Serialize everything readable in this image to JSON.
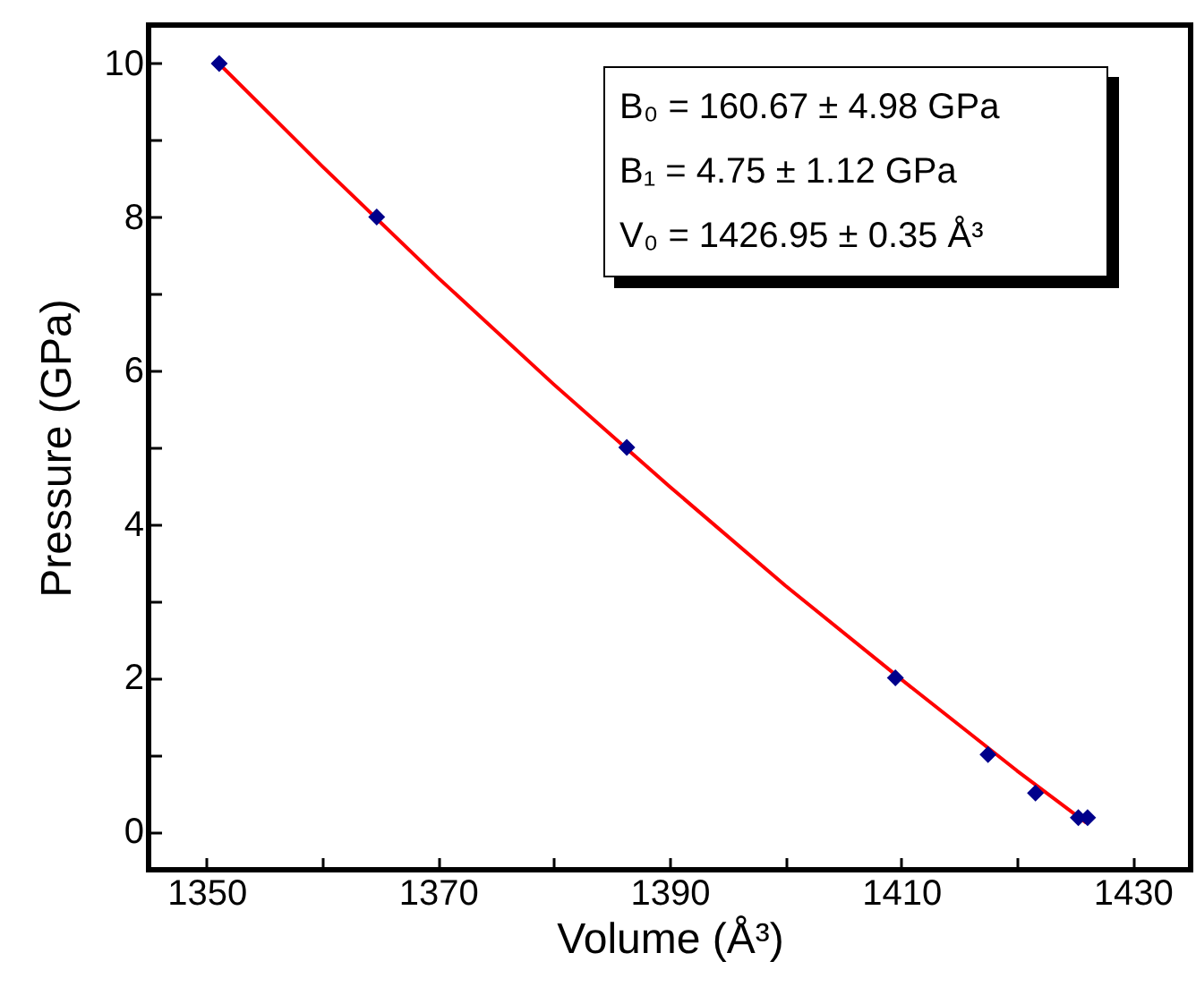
{
  "chart_data": {
    "type": "scatter",
    "xlabel": "Volume (Å³)",
    "ylabel": "Pressure (GPa)",
    "xlim": [
      1345,
      1435
    ],
    "ylim": [
      -0.5,
      10.5
    ],
    "xticks": [
      1350,
      {
        "value": 1360,
        "label": null
      },
      1370,
      {
        "value": 1380,
        "label": null
      },
      1390,
      {
        "value": 1400,
        "label": null
      },
      1410,
      {
        "value": 1420,
        "label": null
      },
      1430
    ],
    "yticks": [
      0,
      {
        "value": 1,
        "label": null
      },
      2,
      {
        "value": 3,
        "label": null
      },
      4,
      {
        "value": 5,
        "label": null
      },
      6,
      {
        "value": 7,
        "label": null
      },
      8,
      {
        "value": 9,
        "label": null
      },
      10
    ],
    "grid": false,
    "series": [
      {
        "type": "line",
        "color": "#ff0000",
        "x": [
          1351,
          1360,
          1370,
          1380,
          1390,
          1400,
          1410,
          1420,
          1426
        ],
        "values": [
          10.01,
          8.66,
          7.21,
          5.82,
          4.49,
          3.2,
          1.98,
          0.79,
          0.11
        ]
      },
      {
        "marker": "diamond",
        "color": "#00008b",
        "x": [
          1351.1,
          1364.7,
          1386.3,
          1409.5,
          1417.5,
          1421.6,
          1425.3,
          1426.1
        ],
        "values": [
          10,
          8,
          5,
          2,
          1,
          0.5,
          0.18,
          0.18
        ]
      }
    ],
    "annotations": [
      "B₀ = 160.67 ± 4.98 GPa",
      "B₁ = 4.75 ± 1.12 GPa",
      "V₀ = 1426.95 ± 0.35 Å³"
    ]
  }
}
